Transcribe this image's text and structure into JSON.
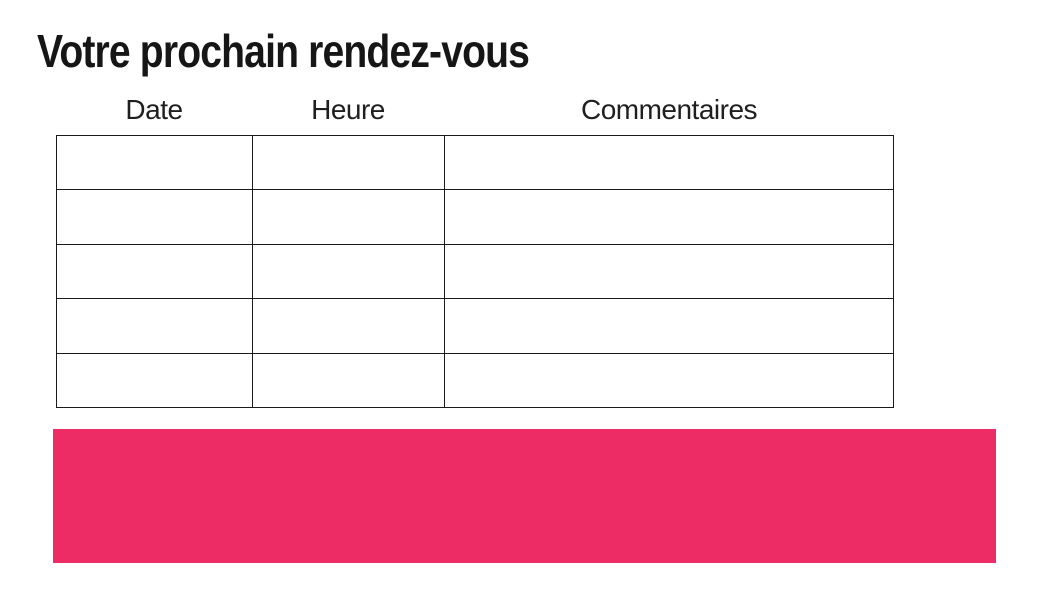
{
  "page": {
    "title": "Votre prochain rendez-vous",
    "background_color": "#ffffff"
  },
  "table": {
    "border_color": "#1a1a1a",
    "columns": [
      {
        "label": "Date"
      },
      {
        "label": "Heure"
      },
      {
        "label": "Commentaires"
      }
    ],
    "rows": [
      [
        "",
        "",
        ""
      ],
      [
        "",
        "",
        ""
      ],
      [
        "",
        "",
        ""
      ],
      [
        "",
        "",
        ""
      ],
      [
        "",
        "",
        ""
      ]
    ]
  },
  "highlight_block": {
    "color": "#ED2C66",
    "text": ""
  }
}
